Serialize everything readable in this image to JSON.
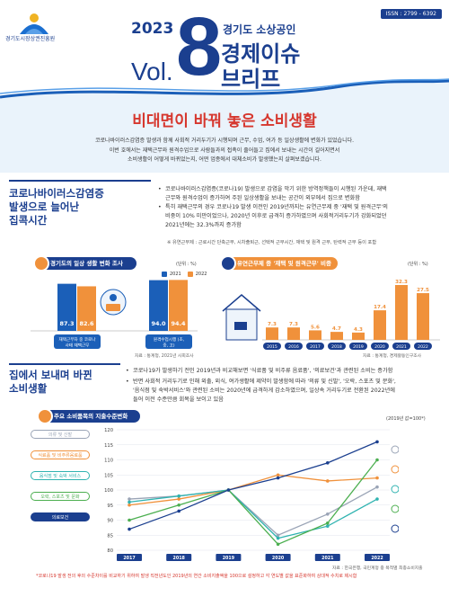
{
  "header": {
    "org_name": "경기도시장상권진흥원",
    "year": "2023",
    "vol_label": "Vol.",
    "vol_number": "8",
    "subtitle": "경기도 소상공인",
    "title_line1": "경제이슈",
    "title_line2": "브리프",
    "issn": "ISSN : 2799 - 6392"
  },
  "headline": "비대면이 바꿔 놓은 소비생활",
  "intro": [
    "코로나바이러스감염증 발생과 함께 사회적 거리두기가 시행되며 근무, 수업, 여가 등 일상생활에 변화가 있었습니다.",
    "이번 호에서는 재택근무와 원격수업으로 사람들과의 접촉이 줄어들고 집에서 보내는 시간이 길어지면서",
    "소비생활이 어떻게 바뀌었는지, 어떤 업종에서 대체소비가 발생했는지 살펴보겠습니다."
  ],
  "section1": {
    "title_line1": "코로나바이러스감염증",
    "title_line2": "발생으로 늘어난",
    "title_line3": "집콕시간",
    "bullets": [
      [
        "코로나바이러스감염증(코로나19) 발생으로 감염을 막기 위한 방역정책들이 시행된 가운데, 재택",
        "근무와 원격수업이 증가하여 주된 일상생활을 보내는 공간이 외부에서 집으로 변화함"
      ],
      [
        "특히 재택근무의 경우 코로나19 발생 이전인 2019년까지는 유연근무제 중 '재택 및 원격근무'의",
        "비중이 10% 미만이었으나, 2020년 이후로 급격히 증가하였으며 사회적거리두기가 강화되었던",
        "2021년에는 32.3%까지 증가함"
      ]
    ],
    "note": "※ 유연근무제 : 근로시간 단축근무, 시차출퇴근, 선택적 근무시간, 재택 및 원격 근무, 탄력적 근무 등이 포함"
  },
  "chart1": {
    "header": "경기도의 일상 생활 변화 조사",
    "unit": "(단위 : %)",
    "legend": [
      "2021",
      "2022"
    ],
    "source": "자료 : 통계청, 2021년 사회조사"
  },
  "chart2": {
    "header": "유연근무제 중 '재택 및 원격근무' 비중",
    "unit": "(단위 : %)",
    "source": "자료 : 통계청, 경제활동인구조사"
  },
  "section2": {
    "title_line1": "집에서 보내며 바뀐",
    "title_line2": "소비생활",
    "bullets": [
      [
        "코로나19가 발생하기 전인 2019년과 비교해보면 '식료품 및 비주류 음료품', '의료보건'과 관련된 소비는 증가함"
      ],
      [
        "반면 사회적 거리두기로 인해 외출, 외식, 여가생활에 제약이 발생함에 따라 '의류 및 신발', '오락, 스포츠 및 문화',",
        "'음식점 및 숙박서비스'와 관련된 소비는 2020년에 급격하게 감소하였으며, 일상속 거리두기로 전환된 2022년에",
        "들어 이전 수준만큼 회복을 보이고 있음"
      ]
    ]
  },
  "chart3": {
    "header": "주요 소비품목의 지출수준변화",
    "unit": "(2019년 값=100*)",
    "source": "자료 : 한국은행, 국민계정 중 목적별 최종소비지출"
  },
  "footnote": "*코로나19 발생 전의 후의 수준차이를 비교하기 위하여 발생 직전년도인 2019년의 연간 소비지출액을 100으로 설정하고 각 연도별 값을 표준화하여 상대적 수치로 제시함",
  "chart_data": [
    {
      "type": "bar",
      "title": "경기도의 일상 생활 변화 조사",
      "categories": [
        "재택근무자 중 코로나 사태 재택근무",
        "원격수업시행 (초, 중, 고)"
      ],
      "series": [
        {
          "name": "2021",
          "values": [
            87.3,
            94.0
          ],
          "color": "#1b5fb8"
        },
        {
          "name": "2022",
          "values": [
            82.6,
            94.4
          ],
          "color": "#f0913b"
        }
      ],
      "ylabel": "(단위 : %)"
    },
    {
      "type": "bar",
      "title": "유연근무제 중 '재택 및 원격근무' 비중",
      "categories": [
        "2015",
        "2016",
        "2017",
        "2018",
        "2019",
        "2020",
        "2021",
        "2022"
      ],
      "values": [
        7.3,
        7.3,
        5.6,
        4.7,
        4.3,
        17.4,
        32.3,
        27.5
      ],
      "colors": [
        "#f0913b",
        "#f0913b",
        "#f0913b",
        "#f0913b",
        "#f0913b",
        "#f0913b",
        "#f0913b",
        "#f0913b"
      ],
      "ylabel": "(단위 : %)",
      "ylim": [
        0,
        36
      ]
    },
    {
      "type": "line",
      "title": "주요 소비품목의 지출수준변화",
      "x": [
        "2017",
        "2018",
        "2019",
        "2020",
        "2021",
        "2022"
      ],
      "series": [
        {
          "name": "의류 및 신발",
          "values": [
            97,
            98,
            100,
            85,
            92,
            101
          ],
          "color": "#9aa4b6"
        },
        {
          "name": "식료품 및 비주류음료품",
          "values": [
            95,
            97,
            100,
            105,
            103,
            104
          ],
          "color": "#f0913b"
        },
        {
          "name": "음식점 및 숙박 서비스",
          "values": [
            96,
            98,
            100,
            84,
            88,
            97
          ],
          "color": "#2fb3b0"
        },
        {
          "name": "오락, 스포츠 및 문화",
          "values": [
            90,
            95,
            100,
            82,
            89,
            110
          ],
          "color": "#4caf50"
        },
        {
          "name": "의료보건",
          "values": [
            87,
            93,
            100,
            104,
            109,
            116
          ],
          "color": "#1b3f8f"
        }
      ],
      "ylim": [
        80,
        120
      ],
      "yticks": [
        80,
        85,
        90,
        95,
        100,
        105,
        110,
        115,
        120
      ]
    }
  ]
}
